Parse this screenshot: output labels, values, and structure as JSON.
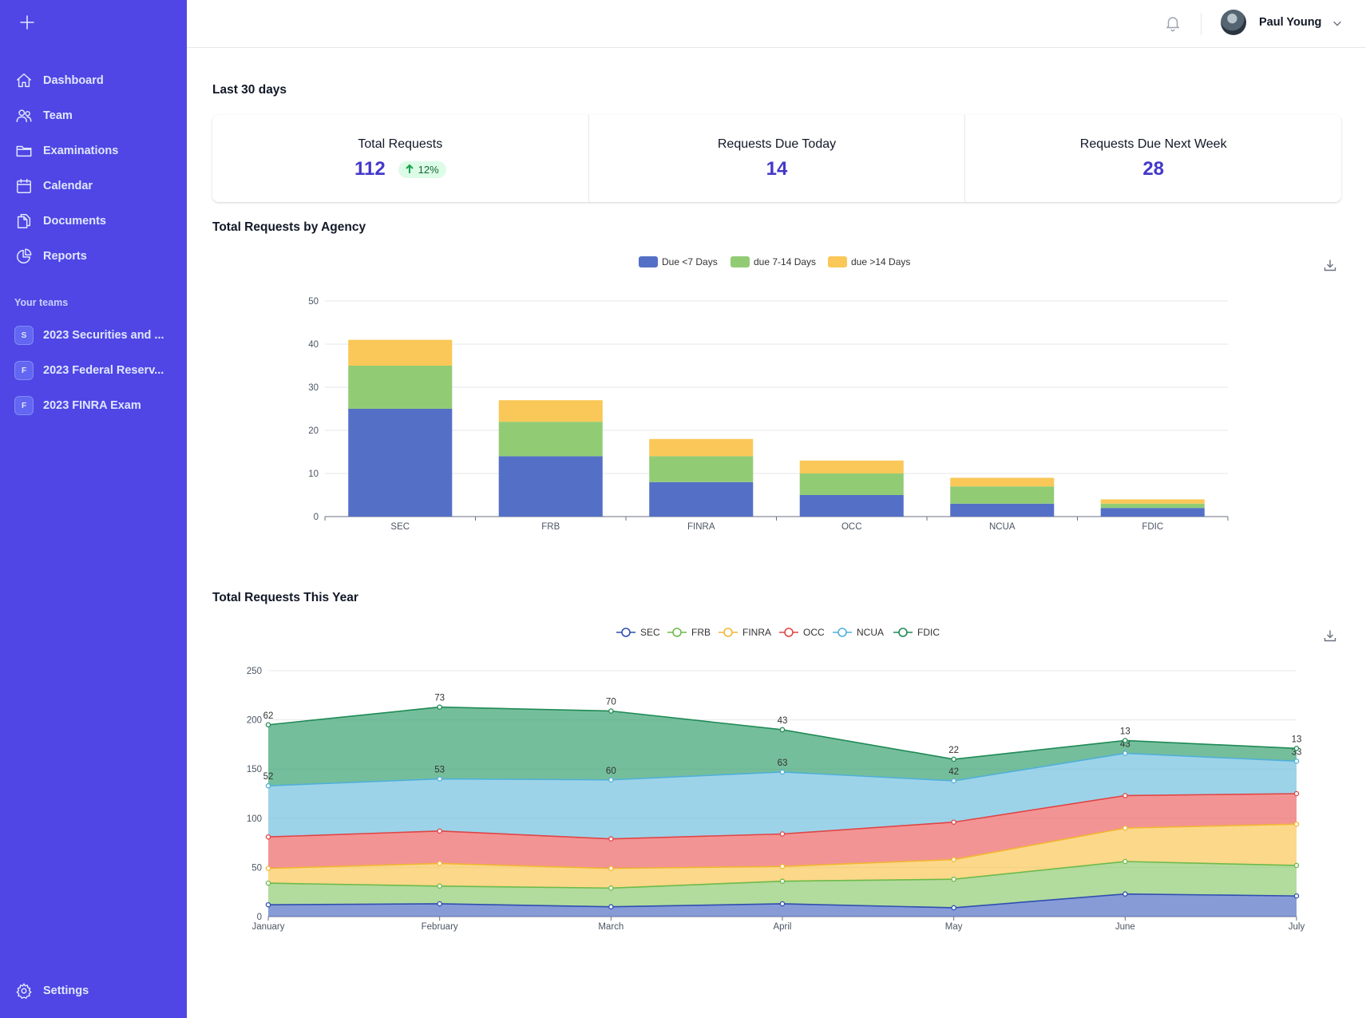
{
  "sidebar": {
    "nav": [
      {
        "label": "Dashboard",
        "icon": "home-icon"
      },
      {
        "label": "Team",
        "icon": "users-icon"
      },
      {
        "label": "Examinations",
        "icon": "folder-icon"
      },
      {
        "label": "Calendar",
        "icon": "calendar-icon"
      },
      {
        "label": "Documents",
        "icon": "documents-icon"
      },
      {
        "label": "Reports",
        "icon": "pie-chart-icon"
      }
    ],
    "teams_heading": "Your teams",
    "teams": [
      {
        "initial": "S",
        "label": "2023 Securities and ..."
      },
      {
        "initial": "F",
        "label": "2023 Federal Reserv..."
      },
      {
        "initial": "F",
        "label": "2023 FINRA Exam"
      }
    ],
    "settings_label": "Settings"
  },
  "header": {
    "user_name": "Paul Young"
  },
  "period_title": "Last 30 days",
  "stats": [
    {
      "label": "Total Requests",
      "value": "112",
      "delta": "12%"
    },
    {
      "label": "Requests Due Today",
      "value": "14"
    },
    {
      "label": "Requests Due Next Week",
      "value": "28"
    }
  ],
  "colors": {
    "accent": "#4f46e5",
    "value": "#4338ca",
    "series": [
      "#5470c6",
      "#91cc75",
      "#fac858",
      "#ee6666",
      "#73c0de",
      "#3ba272"
    ]
  },
  "chart_data": [
    {
      "type": "bar",
      "title": "Total Requests by Agency",
      "categories": [
        "SEC",
        "FRB",
        "FINRA",
        "OCC",
        "NCUA",
        "FDIC"
      ],
      "stacked": true,
      "series": [
        {
          "name": "Due <7 Days",
          "values": [
            25,
            14,
            8,
            5,
            3,
            2
          ]
        },
        {
          "name": "due 7-14 Days",
          "values": [
            10,
            8,
            6,
            5,
            4,
            1
          ]
        },
        {
          "name": "due >14 Days",
          "values": [
            6,
            5,
            4,
            3,
            2,
            1
          ]
        }
      ],
      "ylim": [
        0,
        50
      ],
      "yticks": [
        0,
        10,
        20,
        30,
        40,
        50
      ],
      "grid": true,
      "legend": "top-center"
    },
    {
      "type": "area",
      "title": "Total Requests This Year",
      "stacked": true,
      "categories": [
        "January",
        "February",
        "March",
        "April",
        "May",
        "June",
        "July"
      ],
      "series": [
        {
          "name": "SEC",
          "values": [
            12,
            13,
            10,
            13,
            9,
            23,
            21
          ]
        },
        {
          "name": "FRB",
          "values": [
            22,
            18,
            19,
            23,
            29,
            33,
            31
          ]
        },
        {
          "name": "FINRA",
          "values": [
            15,
            23,
            20,
            15,
            20,
            34,
            42
          ]
        },
        {
          "name": "OCC",
          "values": [
            32,
            33,
            30,
            33,
            38,
            33,
            31
          ]
        },
        {
          "name": "NCUA",
          "values": [
            52,
            53,
            60,
            63,
            42,
            43,
            33
          ]
        },
        {
          "name": "FDIC",
          "values": [
            62,
            73,
            70,
            43,
            22,
            13,
            13
          ]
        }
      ],
      "labeled_series": [
        "NCUA",
        "FDIC"
      ],
      "ylim": [
        0,
        250
      ],
      "yticks": [
        0,
        50,
        100,
        150,
        200,
        250
      ],
      "grid": true,
      "legend": "top-center"
    }
  ]
}
